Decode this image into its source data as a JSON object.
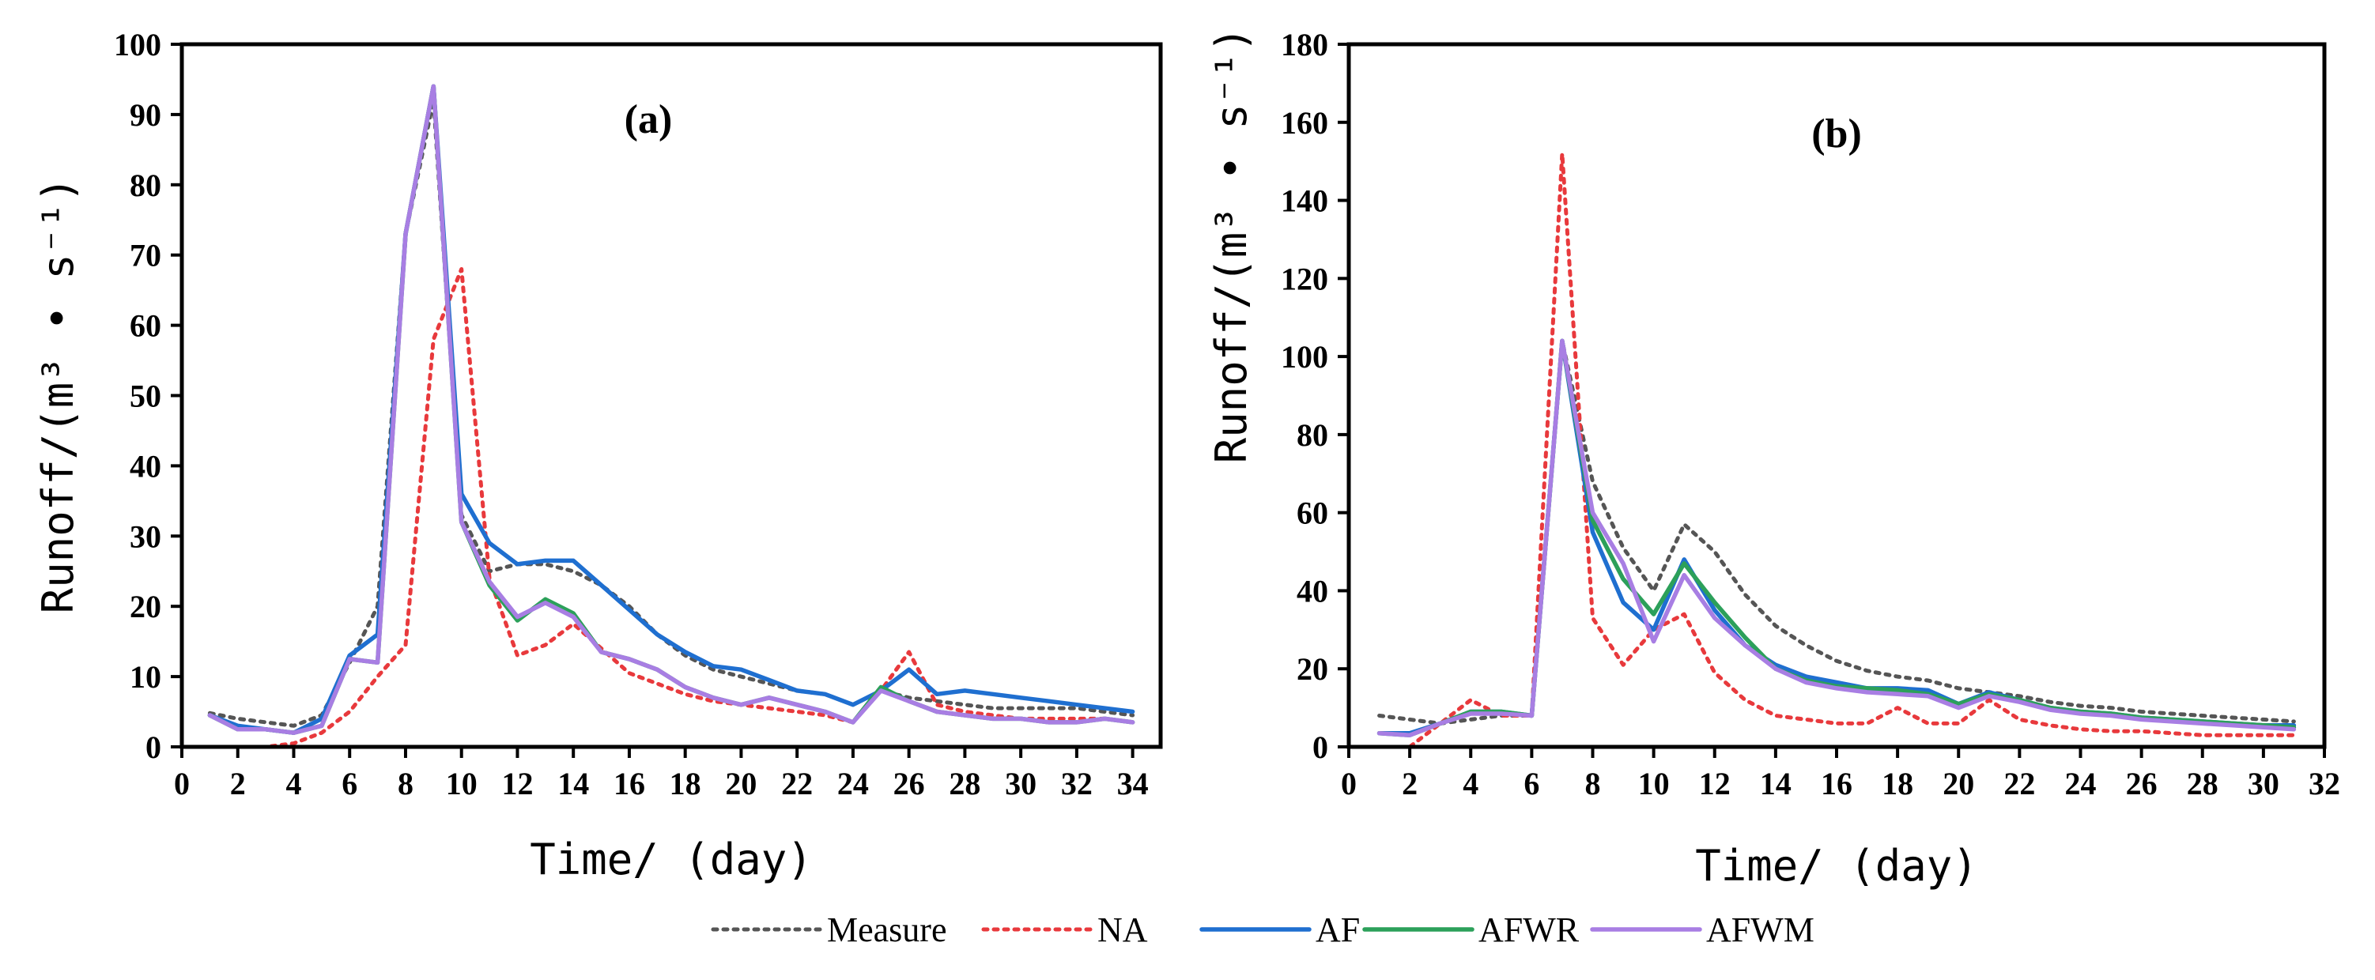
{
  "legend": {
    "items": [
      {
        "name": "Measure",
        "color": "#555555",
        "dash": "dotted"
      },
      {
        "name": "NA",
        "color": "#e8393c",
        "dash": "dotted"
      },
      {
        "name": "AF",
        "color": "#1f6fd0",
        "dash": "solid"
      },
      {
        "name": "AFWR",
        "color": "#2ca05a",
        "dash": "solid"
      },
      {
        "name": "AFWM",
        "color": "#a87ee3",
        "dash": "solid"
      }
    ],
    "placement": "bottom-center"
  },
  "chart_data": [
    {
      "type": "line",
      "panel_label": "(a)",
      "xlabel": "Time/ (day)",
      "ylabel": "Runoff/(m³ • s⁻¹)",
      "xlim": [
        0,
        35
      ],
      "ylim": [
        0,
        100
      ],
      "xticks": [
        0,
        2,
        4,
        6,
        8,
        10,
        12,
        14,
        16,
        18,
        20,
        22,
        24,
        26,
        28,
        30,
        32,
        34
      ],
      "yticks": [
        0,
        10,
        20,
        30,
        40,
        50,
        60,
        70,
        80,
        90,
        100
      ],
      "grid": false,
      "x": [
        1,
        2,
        3,
        4,
        5,
        6,
        7,
        8,
        9,
        10,
        11,
        12,
        13,
        14,
        15,
        16,
        17,
        18,
        19,
        20,
        21,
        22,
        23,
        24,
        25,
        26,
        27,
        28,
        29,
        30,
        31,
        32,
        33,
        34
      ],
      "series": [
        {
          "name": "Measure",
          "values": [
            4.8,
            4,
            3.5,
            3,
            4.5,
            12,
            20,
            73,
            92,
            33,
            25,
            26,
            26,
            25,
            23,
            20,
            16,
            13,
            11,
            10,
            9,
            8,
            7.5,
            6,
            8,
            7,
            6.5,
            6,
            5.5,
            5.5,
            5.5,
            5.5,
            5,
            4.5
          ]
        },
        {
          "name": "NA",
          "values": [
            0,
            0,
            0,
            0.5,
            2,
            5,
            10,
            14.5,
            58,
            68,
            24,
            13,
            14.5,
            17.5,
            14,
            10.5,
            9,
            7.5,
            6.5,
            6,
            5.5,
            5,
            4.5,
            3.5,
            8,
            13.5,
            6,
            5,
            4.5,
            4,
            4,
            4,
            4,
            3.5
          ]
        },
        {
          "name": "AF",
          "values": [
            4.5,
            3,
            2.5,
            2,
            4,
            13,
            16,
            73,
            94,
            36,
            29,
            26,
            26.5,
            26.5,
            23,
            19.5,
            16,
            13.5,
            11.5,
            11,
            9.5,
            8,
            7.5,
            6,
            8,
            11,
            7.5,
            8,
            7.5,
            7,
            6.5,
            6,
            5.5,
            5
          ]
        },
        {
          "name": "AFWR",
          "values": [
            4.5,
            2.5,
            2.5,
            2,
            3,
            12.5,
            12,
            73,
            94,
            32,
            23,
            18,
            21,
            19,
            13.5,
            12.5,
            11,
            8.5,
            7,
            6,
            7,
            6,
            5,
            3.5,
            8.5,
            6.5,
            5,
            4.5,
            4,
            4,
            3.5,
            3.5,
            4,
            3.5
          ]
        },
        {
          "name": "AFWM",
          "values": [
            4.5,
            2.5,
            2.5,
            2,
            3,
            12.5,
            12,
            73,
            94,
            32,
            23.5,
            18.5,
            20.5,
            18.5,
            13.5,
            12.5,
            11,
            8.5,
            7,
            6,
            7,
            6,
            5,
            3.5,
            8,
            6.5,
            5,
            4.5,
            4,
            4,
            3.5,
            3.5,
            4,
            3.5
          ]
        }
      ]
    },
    {
      "type": "line",
      "panel_label": "(b)",
      "xlabel": "Time/ (day)",
      "ylabel": "Runoff/(m³ • s⁻¹)",
      "xlim": [
        0,
        32
      ],
      "ylim": [
        0,
        180
      ],
      "xticks": [
        0,
        2,
        4,
        6,
        8,
        10,
        12,
        14,
        16,
        18,
        20,
        22,
        24,
        26,
        28,
        30,
        32
      ],
      "yticks": [
        0,
        20,
        40,
        60,
        80,
        100,
        120,
        140,
        160,
        180
      ],
      "grid": false,
      "x": [
        1,
        2,
        3,
        4,
        5,
        6,
        7,
        8,
        9,
        10,
        11,
        12,
        13,
        14,
        15,
        16,
        17,
        18,
        19,
        20,
        21,
        22,
        23,
        24,
        25,
        26,
        27,
        28,
        29,
        30,
        31
      ],
      "series": [
        {
          "name": "Measure",
          "values": [
            8,
            7,
            6,
            7,
            8,
            8,
            104,
            68,
            51,
            40,
            57,
            50,
            39,
            31,
            26,
            22,
            19.5,
            18,
            17,
            15,
            14,
            13,
            11.5,
            10.5,
            10,
            9,
            8.5,
            8,
            7.5,
            7,
            6.5
          ]
        },
        {
          "name": "NA",
          "values": [
            0,
            0,
            6,
            12,
            8,
            8,
            152,
            33,
            21,
            30,
            34,
            19,
            12,
            8,
            7,
            6,
            6,
            10,
            6,
            6,
            12,
            7,
            5.5,
            4.5,
            4,
            4,
            3.5,
            3,
            3,
            3,
            3
          ]
        },
        {
          "name": "AF",
          "values": [
            3.5,
            3.5,
            6,
            9,
            9,
            8,
            104,
            55,
            37,
            30,
            48,
            35,
            26,
            21,
            18,
            16.5,
            15,
            15,
            14.5,
            11,
            14,
            12,
            10,
            9,
            8.5,
            7.5,
            7,
            6.5,
            6,
            5.5,
            5.5
          ]
        },
        {
          "name": "AFWR",
          "values": [
            3.5,
            3,
            6,
            9,
            9,
            8,
            104,
            58,
            43,
            34,
            47,
            37,
            28,
            20,
            17,
            15.5,
            15,
            14.5,
            13.5,
            11,
            13.5,
            12,
            10,
            9,
            8.5,
            7.5,
            7,
            6.5,
            6,
            5.5,
            5
          ]
        },
        {
          "name": "AFWM",
          "values": [
            3.5,
            3,
            6,
            8.5,
            8.5,
            8,
            104,
            60,
            47,
            27,
            44,
            33,
            26,
            20,
            16.5,
            15,
            14,
            13.5,
            13,
            10,
            13,
            11.5,
            9.5,
            8.5,
            8,
            7,
            6.5,
            6,
            5.5,
            5,
            4.5
          ]
        }
      ]
    }
  ]
}
